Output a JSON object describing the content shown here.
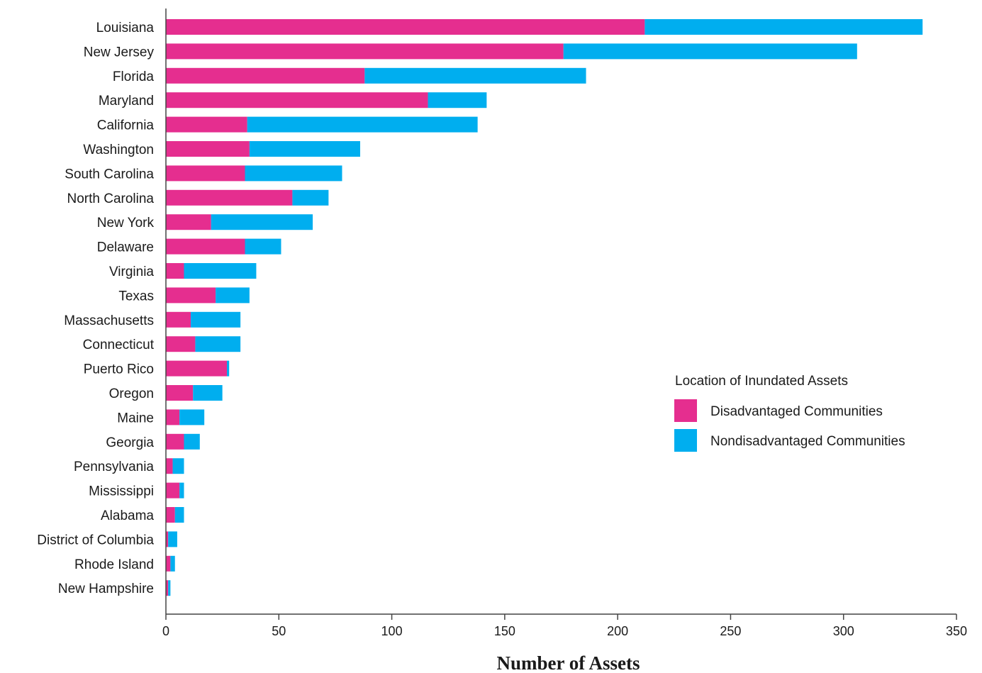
{
  "chart_data": {
    "type": "bar",
    "orientation": "horizontal",
    "stacked": true,
    "categories": [
      "Louisiana",
      "New Jersey",
      "Florida",
      "Maryland",
      "California",
      "Washington",
      "South Carolina",
      "North Carolina",
      "New York",
      "Delaware",
      "Virginia",
      "Texas",
      "Massachusetts",
      "Connecticut",
      "Puerto Rico",
      "Oregon",
      "Maine",
      "Georgia",
      "Pennsylvania",
      "Mississippi",
      "Alabama",
      "District of Columbia",
      "Rhode Island",
      "New Hampshire"
    ],
    "series": [
      {
        "name": "Disadvantaged Communities",
        "color": "#e52e8f",
        "values": [
          212,
          176,
          88,
          116,
          36,
          37,
          35,
          56,
          20,
          35,
          8,
          22,
          11,
          13,
          27,
          12,
          6,
          8,
          3,
          6,
          4,
          1,
          2,
          1
        ]
      },
      {
        "name": "Nondisadvantaged Communities",
        "color": "#00aeef",
        "values": [
          123,
          130,
          98,
          26,
          102,
          49,
          43,
          16,
          45,
          16,
          32,
          15,
          22,
          20,
          1,
          13,
          11,
          7,
          5,
          2,
          4,
          4,
          2,
          1
        ]
      }
    ],
    "xlabel": "Number of Assets",
    "ylabel": "",
    "xlim": [
      0,
      350
    ],
    "xticks": [
      0,
      50,
      100,
      150,
      200,
      250,
      300,
      350
    ],
    "grid": false,
    "legend": {
      "title": "Location of Inundated Assets",
      "placement": "center-right"
    }
  }
}
